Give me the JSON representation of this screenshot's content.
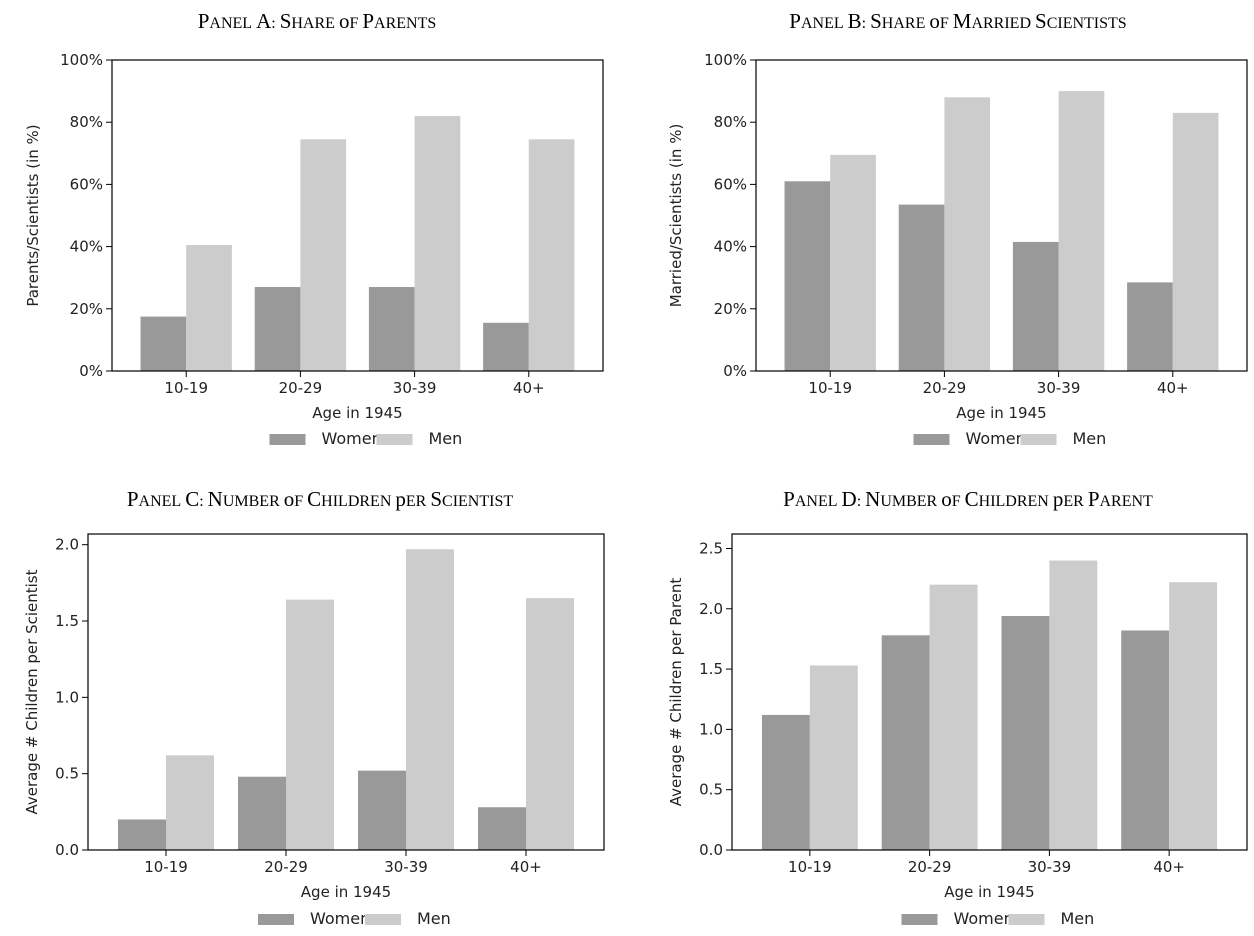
{
  "colors": {
    "women": "#999999",
    "men": "#cccccc",
    "frame": "#000000"
  },
  "legend": {
    "women": "Women",
    "men": "Men"
  },
  "chart_data": [
    {
      "type": "bar",
      "title": "Panel A: Share of Parents",
      "xlabel": "Age in 1945",
      "ylabel": "Parents/Scientists (in %)",
      "categories": [
        "10-19",
        "20-29",
        "30-39",
        "40+"
      ],
      "ylim": [
        0,
        100
      ],
      "yticks": [
        "0%",
        "20%",
        "40%",
        "60%",
        "80%",
        "100%"
      ],
      "series": [
        {
          "name": "Women",
          "values": [
            17.5,
            27,
            27,
            15.5
          ]
        },
        {
          "name": "Men",
          "values": [
            40.5,
            74.5,
            82,
            74.5
          ]
        }
      ]
    },
    {
      "type": "bar",
      "title": "Panel B: Share of Married Scientists",
      "xlabel": "Age in 1945",
      "ylabel": "Married/Scientists (in %)",
      "categories": [
        "10-19",
        "20-29",
        "30-39",
        "40+"
      ],
      "ylim": [
        0,
        100
      ],
      "yticks": [
        "0%",
        "20%",
        "40%",
        "60%",
        "80%",
        "100%"
      ],
      "series": [
        {
          "name": "Women",
          "values": [
            61,
            53.5,
            41.5,
            28.5
          ]
        },
        {
          "name": "Men",
          "values": [
            69.5,
            88,
            90,
            83
          ]
        }
      ]
    },
    {
      "type": "bar",
      "title": "Panel C: Number of Children per Scientist",
      "xlabel": "Age in 1945",
      "ylabel": "Average # Children per Scientist",
      "categories": [
        "10-19",
        "20-29",
        "30-39",
        "40+"
      ],
      "ylim": [
        0,
        2.07
      ],
      "yticks": [
        "0.0",
        "0.5",
        "1.0",
        "1.5",
        "2.0"
      ],
      "series": [
        {
          "name": "Women",
          "values": [
            0.2,
            0.48,
            0.52,
            0.28
          ]
        },
        {
          "name": "Men",
          "values": [
            0.62,
            1.64,
            1.97,
            1.65
          ]
        }
      ]
    },
    {
      "type": "bar",
      "title": "Panel D: Number of Children per Parent",
      "xlabel": "Age in 1945",
      "ylabel": "Average # Children per Parent",
      "categories": [
        "10-19",
        "20-29",
        "30-39",
        "40+"
      ],
      "ylim": [
        0,
        2.62
      ],
      "yticks": [
        "0.0",
        "0.5",
        "1.0",
        "1.5",
        "2.0",
        "2.5"
      ],
      "series": [
        {
          "name": "Women",
          "values": [
            1.12,
            1.78,
            1.94,
            1.82
          ]
        },
        {
          "name": "Men",
          "values": [
            1.53,
            2.2,
            2.4,
            2.22
          ]
        }
      ]
    }
  ]
}
